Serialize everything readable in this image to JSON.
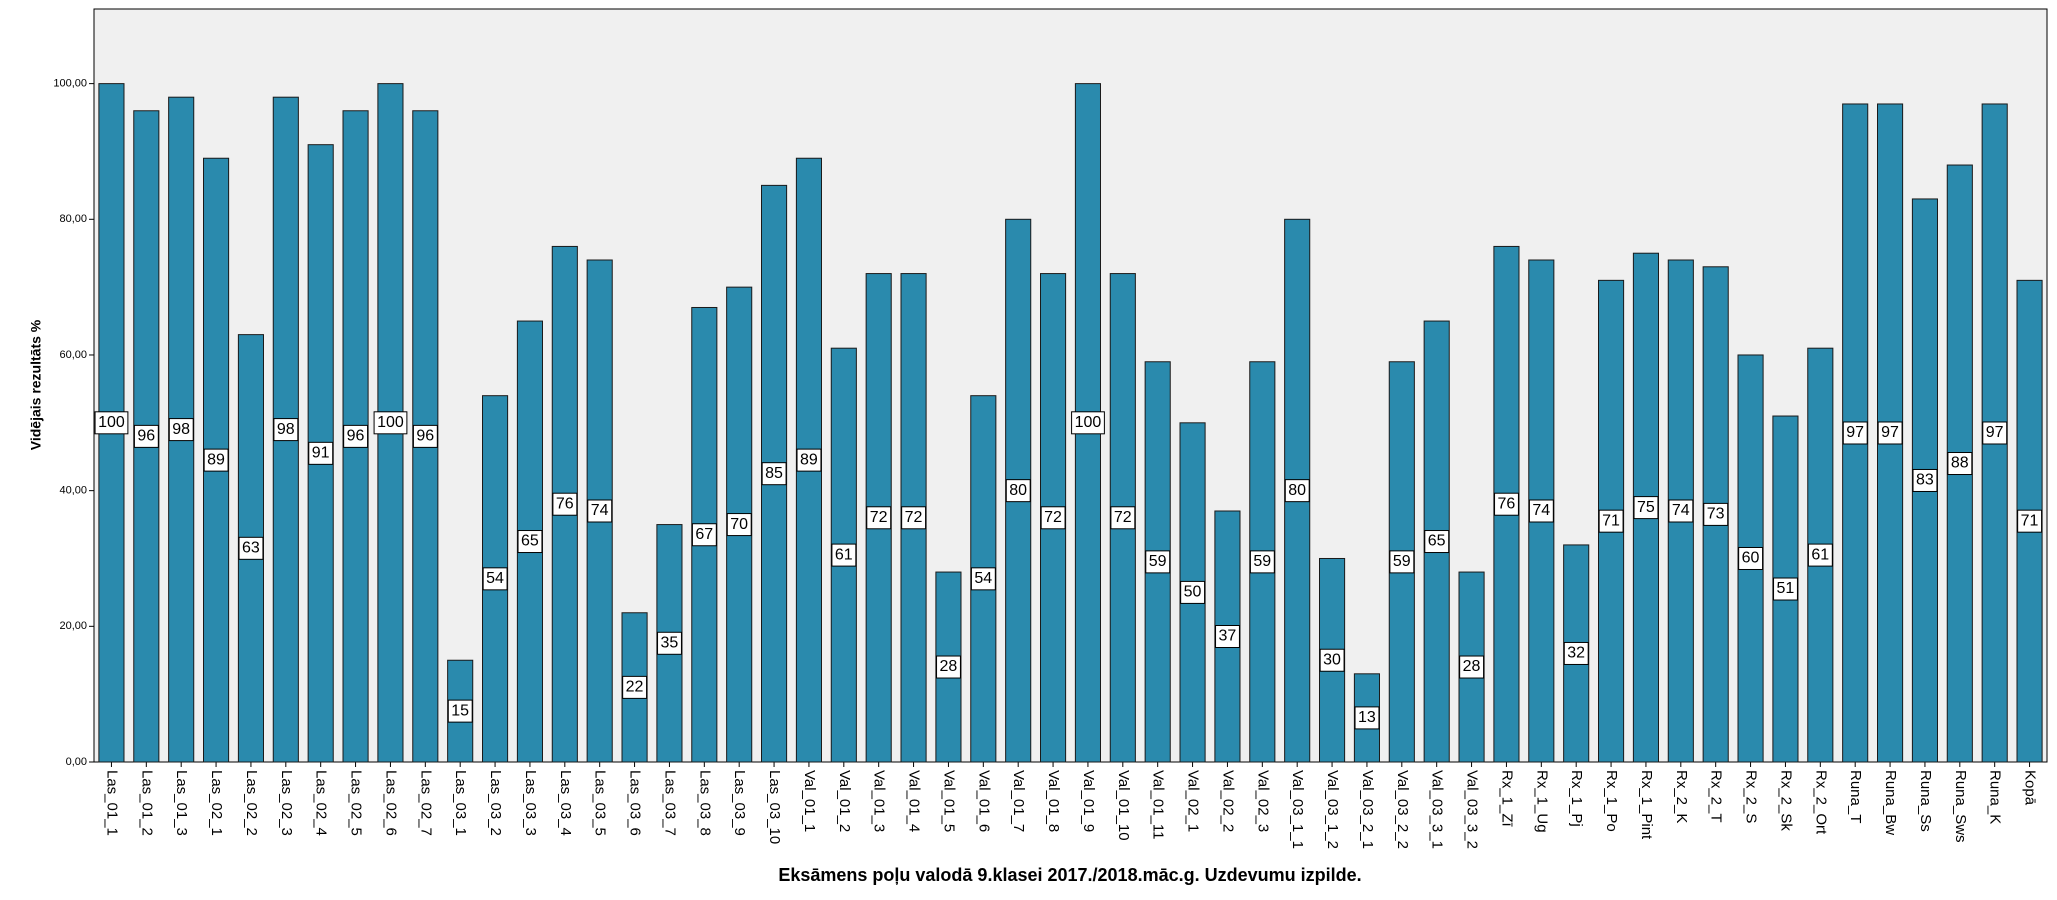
{
  "chart_data": {
    "type": "bar",
    "x_label": "Eksāmens poļu valodā 9.klasei 2017./2018.māc.g. Uzdevumu izpilde.",
    "y_label": "Vidējais rezultāts %",
    "categories": [
      "Las_01_1",
      "Las_01_2",
      "Las_01_3",
      "Las_02_1",
      "Las_02_2",
      "Las_02_3",
      "Las_02_4",
      "Las_02_5",
      "Las_02_6",
      "Las_02_7",
      "Las_03_1",
      "Las_03_2",
      "Las_03_3",
      "Las_03_4",
      "Las_03_5",
      "Las_03_6",
      "Las_03_7",
      "Las_03_8",
      "Las_03_9",
      "Las_03_10",
      "Val_01_1",
      "Val_01_2",
      "Val_01_3",
      "Val_01_4",
      "Val_01_5",
      "Val_01_6",
      "Val_01_7",
      "Val_01_8",
      "Val_01_9",
      "Val_01_10",
      "Val_01_11",
      "Val_02_1",
      "Val_02_2",
      "Val_02_3",
      "Val_03_1_1",
      "Val_03_1_2",
      "Val_03_2_1",
      "Val_03_2_2",
      "Val_03_3_1",
      "Val_03_3_2",
      "Rx_1_Zī",
      "Rx_1_Ug",
      "Rx_1_Pj",
      "Rx_1_Po",
      "Rx_1_Pint",
      "Rx_2_K",
      "Rx_2_T",
      "Rx_2_S",
      "Rx_2_Sk",
      "Rx_2_Ort",
      "Runa_T",
      "Runa_Bw",
      "Runa_Ss",
      "Runa_Sws",
      "Runa_K",
      "Kopā"
    ],
    "values": [
      100,
      96,
      98,
      89,
      63,
      98,
      91,
      96,
      100,
      96,
      15,
      54,
      65,
      76,
      74,
      22,
      35,
      67,
      70,
      85,
      89,
      61,
      72,
      72,
      28,
      54,
      80,
      72,
      100,
      72,
      59,
      50,
      37,
      59,
      80,
      30,
      13,
      59,
      65,
      28,
      76,
      74,
      32,
      71,
      75,
      74,
      73,
      60,
      51,
      61,
      97,
      97,
      83,
      88,
      97,
      71
    ],
    "color": "#2a8aad",
    "ylim": [
      0,
      111
    ],
    "yticks": [
      {
        "value": 0,
        "label": "0,00"
      },
      {
        "value": 20,
        "label": "20,00"
      },
      {
        "value": 40,
        "label": "40,00"
      },
      {
        "value": 60,
        "label": "60,00"
      },
      {
        "value": 80,
        "label": "80,00"
      },
      {
        "value": 100,
        "label": "100,00"
      }
    ],
    "grid": false
  }
}
